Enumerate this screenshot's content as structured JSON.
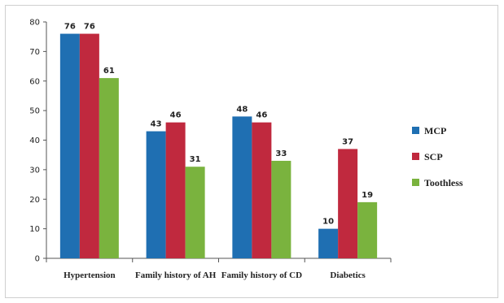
{
  "chart_data": {
    "type": "bar",
    "categories": [
      "Hypertension",
      "Family history of AH",
      "Family history of CD",
      "Diabetics"
    ],
    "series": [
      {
        "name": "MCP",
        "values": [
          76,
          43,
          48,
          10
        ],
        "color": "#1f6fb2"
      },
      {
        "name": "SCP",
        "values": [
          76,
          46,
          46,
          37
        ],
        "color": "#c0293e"
      },
      {
        "name": "Toothless",
        "values": [
          61,
          31,
          33,
          19
        ],
        "color": "#7ab33e"
      }
    ],
    "ylim": [
      0,
      80
    ],
    "yticks": [
      0,
      10,
      20,
      30,
      40,
      50,
      60,
      70,
      80
    ],
    "grid": false,
    "legend": "right",
    "title": "",
    "xlabel": "",
    "ylabel": ""
  }
}
